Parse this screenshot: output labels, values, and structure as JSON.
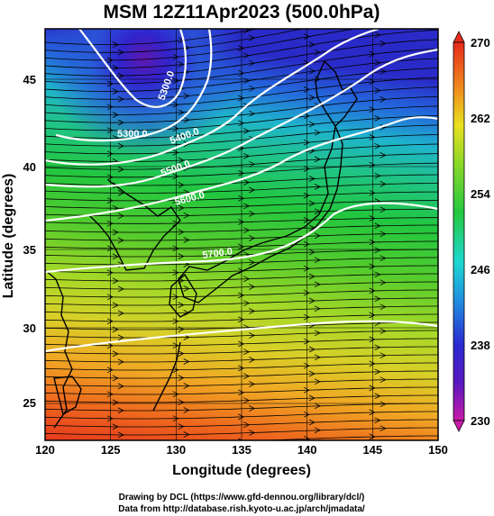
{
  "title": "MSM 12Z11Apr2023 (500.0hPa)",
  "xlabel": "Longitude (degrees)",
  "ylabel": "Latitude  (degrees)",
  "x_ticks": [
    "120",
    "125",
    "130",
    "135",
    "140",
    "145",
    "150"
  ],
  "y_ticks": [
    "25",
    "30",
    "35",
    "40",
    "45"
  ],
  "colorbar": {
    "ticks": [
      "270",
      "262",
      "254",
      "246",
      "238",
      "230"
    ],
    "min": 230,
    "max": 270
  },
  "contour_labels": [
    "5300.0",
    "5300.0",
    "5400.0",
    "5500.0",
    "5600.0",
    "5700.0"
  ],
  "credits": {
    "line1": "Drawing by DCL (https://www.gfd-dennou.org/library/dcl/)",
    "line2": "Data from http://database.rish.kyoto-u.ac.jp/arch/jmadata/"
  },
  "colors": {
    "warm": "#e6401c",
    "mid": "#3cc832",
    "cold": "#2a2ad0",
    "contour": "#ffffff"
  }
}
